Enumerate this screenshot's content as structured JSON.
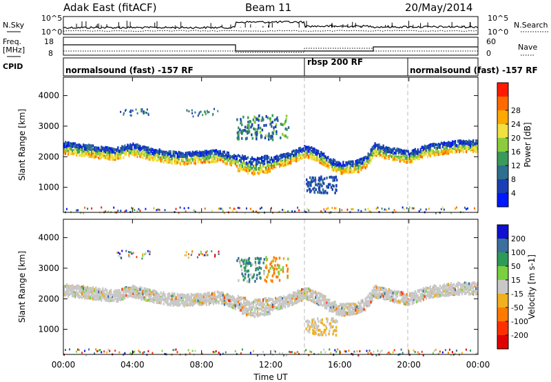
{
  "header": {
    "site": "Adak East (fitACF)",
    "beam": "Beam 11",
    "date": "20/May/2014"
  },
  "noise_panel": {
    "left_label": "N.Sky",
    "right_label": "N.Search",
    "left_ticks": [
      "10^5",
      "10^0"
    ],
    "right_ticks": [
      "10^5",
      "10^0"
    ]
  },
  "freq_panel": {
    "left_label_line1": "Freq.",
    "left_label_line2": "[MHz]",
    "right_label": "Nave",
    "left_ticks": [
      "18",
      "8"
    ],
    "right_ticks": [
      "60",
      "0"
    ]
  },
  "cpid_panel": {
    "label": "CPID",
    "segments": [
      {
        "text": "normalsound (fast) -157 RF",
        "start": 0,
        "end": 14
      },
      {
        "text": "rbsp 200 RF",
        "start": 14,
        "end": 20
      },
      {
        "text": "normalsound (fast) -157 RF",
        "start": 20,
        "end": 24
      }
    ]
  },
  "chart_data": [
    {
      "type": "heatmap",
      "name": "power",
      "ylabel": "Slant Range [km]",
      "ylim": [
        180,
        4600
      ],
      "yticks": [
        "1000",
        "2000",
        "3000",
        "4000"
      ],
      "colorbar": {
        "label": "Power [dB]",
        "ticks": [
          "4",
          "8",
          "12",
          "16",
          "20",
          "24",
          "28"
        ],
        "colors": [
          "#0018ff",
          "#1a3fb4",
          "#2e6f8e",
          "#3a9a5a",
          "#8ccc3c",
          "#f0e040",
          "#ffa800",
          "#ff6a00",
          "#ff1a00"
        ]
      },
      "bands": [
        {
          "x": [
            0,
            3,
            4,
            5,
            6,
            7,
            8,
            9,
            10,
            11,
            12,
            13,
            14,
            15,
            15.5,
            16,
            17,
            17.5,
            18,
            19,
            20,
            21,
            22,
            23,
            24
          ],
          "center": [
            2350,
            2150,
            2300,
            2150,
            2050,
            2000,
            2050,
            2100,
            1900,
            1750,
            1850,
            2000,
            2250,
            2000,
            1800,
            1700,
            1750,
            1900,
            2300,
            2150,
            2050,
            2250,
            2350,
            2400,
            2400
          ],
          "width": 350
        }
      ],
      "x_range": [
        0,
        24
      ]
    },
    {
      "type": "heatmap",
      "name": "velocity",
      "ylabel": "Slant Range [km]",
      "ylim": [
        180,
        4600
      ],
      "yticks": [
        "1000",
        "2000",
        "3000",
        "4000"
      ],
      "colorbar": {
        "label": "Velocity [m s-1]",
        "ticks": [
          "200",
          "100",
          "50",
          "15",
          "-15",
          "-50",
          "-100",
          "-200"
        ],
        "colors": [
          "#1010d0",
          "#3a6f9e",
          "#2e9a5a",
          "#7ad040",
          "#c8c8c8",
          "#f0b020",
          "#ff7a00",
          "#ff3000",
          "#e00000"
        ]
      },
      "x_range": [
        0,
        24
      ]
    }
  ],
  "xaxis": {
    "label": "Time UT",
    "ticks": [
      "00:00",
      "04:00",
      "08:00",
      "12:00",
      "16:00",
      "20:00",
      "00:00"
    ]
  }
}
